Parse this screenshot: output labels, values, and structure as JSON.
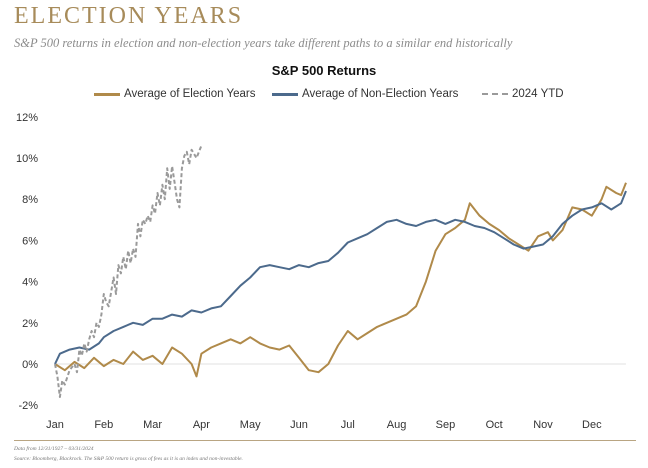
{
  "header": {
    "title": "ELECTION YEARS",
    "subtitle": "S&P 500 returns in election and non-election years take different paths to a similar end historically"
  },
  "footer": {
    "date_note": "Data from 12/31/1927 – 03/31/2024",
    "source_note": "Source: Bloomberg, Blackrock. The S&P 500 return is gross of fees as it is an index and non-investable."
  },
  "colors": {
    "accent": "#a78b5a",
    "election": "#b08a4a",
    "non_election": "#4c6a8c",
    "ytd_2024": "#9a9a9a"
  },
  "chart_data": {
    "type": "line",
    "title": "S&P 500 Returns",
    "xlabel": "",
    "ylabel": "",
    "x_tick_labels": [
      "Jan",
      "Feb",
      "Mar",
      "Apr",
      "May",
      "Jun",
      "Jul",
      "Aug",
      "Sep",
      "Oct",
      "Nov",
      "Dec"
    ],
    "y_ticks": [
      -2,
      0,
      2,
      4,
      6,
      8,
      10,
      12
    ],
    "y_tick_labels": [
      "-2%",
      "0%",
      "2%",
      "4%",
      "6%",
      "8%",
      "10%",
      "12%"
    ],
    "ylim": [
      -2,
      12
    ],
    "xlim": [
      0,
      11.7
    ],
    "grid": false,
    "legend_position": "top",
    "series": [
      {
        "name": "Average of Election Years",
        "style": "solid",
        "points": [
          [
            0,
            0.0
          ],
          [
            0.2,
            -0.3
          ],
          [
            0.4,
            0.1
          ],
          [
            0.6,
            -0.2
          ],
          [
            0.8,
            0.3
          ],
          [
            1.0,
            -0.1
          ],
          [
            1.2,
            0.2
          ],
          [
            1.4,
            0.0
          ],
          [
            1.6,
            0.6
          ],
          [
            1.8,
            0.2
          ],
          [
            2.0,
            0.4
          ],
          [
            2.2,
            0.0
          ],
          [
            2.4,
            0.8
          ],
          [
            2.6,
            0.5
          ],
          [
            2.8,
            0.0
          ],
          [
            2.9,
            -0.6
          ],
          [
            3.0,
            0.5
          ],
          [
            3.2,
            0.8
          ],
          [
            3.4,
            1.0
          ],
          [
            3.6,
            1.2
          ],
          [
            3.8,
            1.0
          ],
          [
            4.0,
            1.3
          ],
          [
            4.2,
            1.0
          ],
          [
            4.4,
            0.8
          ],
          [
            4.6,
            0.7
          ],
          [
            4.8,
            0.9
          ],
          [
            5.0,
            0.3
          ],
          [
            5.2,
            -0.3
          ],
          [
            5.4,
            -0.4
          ],
          [
            5.6,
            0.0
          ],
          [
            5.8,
            0.9
          ],
          [
            6.0,
            1.6
          ],
          [
            6.2,
            1.2
          ],
          [
            6.4,
            1.5
          ],
          [
            6.6,
            1.8
          ],
          [
            6.8,
            2.0
          ],
          [
            7.0,
            2.2
          ],
          [
            7.2,
            2.4
          ],
          [
            7.4,
            2.8
          ],
          [
            7.6,
            4.0
          ],
          [
            7.8,
            5.5
          ],
          [
            8.0,
            6.3
          ],
          [
            8.2,
            6.6
          ],
          [
            8.4,
            7.0
          ],
          [
            8.5,
            7.8
          ],
          [
            8.7,
            7.2
          ],
          [
            8.9,
            6.8
          ],
          [
            9.1,
            6.5
          ],
          [
            9.3,
            6.1
          ],
          [
            9.5,
            5.8
          ],
          [
            9.7,
            5.5
          ],
          [
            9.9,
            6.2
          ],
          [
            10.1,
            6.4
          ],
          [
            10.2,
            6.0
          ],
          [
            10.4,
            6.5
          ],
          [
            10.6,
            7.6
          ],
          [
            10.8,
            7.5
          ],
          [
            11.0,
            7.2
          ],
          [
            11.2,
            8.0
          ],
          [
            11.3,
            8.6
          ],
          [
            11.5,
            8.3
          ],
          [
            11.6,
            8.2
          ],
          [
            11.7,
            8.8
          ]
        ]
      },
      {
        "name": "Average of Non-Election Years",
        "style": "solid",
        "points": [
          [
            0,
            0.0
          ],
          [
            0.1,
            0.5
          ],
          [
            0.3,
            0.7
          ],
          [
            0.5,
            0.8
          ],
          [
            0.7,
            0.7
          ],
          [
            0.9,
            1.0
          ],
          [
            1.0,
            1.3
          ],
          [
            1.2,
            1.6
          ],
          [
            1.4,
            1.8
          ],
          [
            1.6,
            2.0
          ],
          [
            1.8,
            1.9
          ],
          [
            2.0,
            2.2
          ],
          [
            2.2,
            2.2
          ],
          [
            2.4,
            2.4
          ],
          [
            2.6,
            2.3
          ],
          [
            2.8,
            2.6
          ],
          [
            3.0,
            2.5
          ],
          [
            3.2,
            2.7
          ],
          [
            3.4,
            2.8
          ],
          [
            3.6,
            3.3
          ],
          [
            3.8,
            3.8
          ],
          [
            4.0,
            4.2
          ],
          [
            4.2,
            4.7
          ],
          [
            4.4,
            4.8
          ],
          [
            4.6,
            4.7
          ],
          [
            4.8,
            4.6
          ],
          [
            5.0,
            4.8
          ],
          [
            5.2,
            4.7
          ],
          [
            5.4,
            4.9
          ],
          [
            5.6,
            5.0
          ],
          [
            5.8,
            5.4
          ],
          [
            6.0,
            5.9
          ],
          [
            6.2,
            6.1
          ],
          [
            6.4,
            6.3
          ],
          [
            6.6,
            6.6
          ],
          [
            6.8,
            6.9
          ],
          [
            7.0,
            7.0
          ],
          [
            7.2,
            6.8
          ],
          [
            7.4,
            6.7
          ],
          [
            7.6,
            6.9
          ],
          [
            7.8,
            7.0
          ],
          [
            8.0,
            6.8
          ],
          [
            8.2,
            7.0
          ],
          [
            8.4,
            6.9
          ],
          [
            8.6,
            6.7
          ],
          [
            8.8,
            6.6
          ],
          [
            9.0,
            6.4
          ],
          [
            9.2,
            6.1
          ],
          [
            9.4,
            5.8
          ],
          [
            9.6,
            5.6
          ],
          [
            9.8,
            5.7
          ],
          [
            10.0,
            5.8
          ],
          [
            10.2,
            6.2
          ],
          [
            10.4,
            6.8
          ],
          [
            10.6,
            7.2
          ],
          [
            10.8,
            7.5
          ],
          [
            11.0,
            7.6
          ],
          [
            11.2,
            7.8
          ],
          [
            11.4,
            7.5
          ],
          [
            11.6,
            7.8
          ],
          [
            11.7,
            8.4
          ]
        ]
      },
      {
        "name": "2024 YTD",
        "style": "dashed",
        "points": [
          [
            0,
            0.0
          ],
          [
            0.05,
            -0.6
          ],
          [
            0.1,
            -1.6
          ],
          [
            0.15,
            -0.8
          ],
          [
            0.2,
            -1.0
          ],
          [
            0.3,
            -0.3
          ],
          [
            0.4,
            0.0
          ],
          [
            0.45,
            -0.4
          ],
          [
            0.5,
            0.7
          ],
          [
            0.55,
            0.4
          ],
          [
            0.6,
            1.0
          ],
          [
            0.65,
            0.6
          ],
          [
            0.7,
            1.2
          ],
          [
            0.75,
            1.6
          ],
          [
            0.8,
            1.3
          ],
          [
            0.85,
            2.0
          ],
          [
            0.9,
            1.8
          ],
          [
            0.95,
            2.4
          ],
          [
            1.0,
            3.4
          ],
          [
            1.05,
            3.0
          ],
          [
            1.1,
            2.8
          ],
          [
            1.2,
            4.2
          ],
          [
            1.25,
            3.4
          ],
          [
            1.3,
            4.8
          ],
          [
            1.35,
            4.4
          ],
          [
            1.4,
            5.2
          ],
          [
            1.45,
            4.6
          ],
          [
            1.5,
            5.5
          ],
          [
            1.55,
            4.9
          ],
          [
            1.6,
            5.6
          ],
          [
            1.65,
            5.2
          ],
          [
            1.7,
            6.8
          ],
          [
            1.75,
            6.2
          ],
          [
            1.8,
            7.0
          ],
          [
            1.85,
            6.8
          ],
          [
            1.9,
            7.2
          ],
          [
            1.95,
            6.9
          ],
          [
            2.0,
            7.7
          ],
          [
            2.05,
            7.3
          ],
          [
            2.1,
            8.3
          ],
          [
            2.15,
            7.7
          ],
          [
            2.2,
            8.7
          ],
          [
            2.25,
            8.0
          ],
          [
            2.3,
            9.5
          ],
          [
            2.35,
            8.5
          ],
          [
            2.4,
            9.6
          ],
          [
            2.45,
            8.8
          ],
          [
            2.5,
            8.0
          ],
          [
            2.55,
            7.6
          ],
          [
            2.6,
            9.5
          ],
          [
            2.65,
            10.1
          ],
          [
            2.7,
            10.3
          ],
          [
            2.75,
            9.7
          ],
          [
            2.8,
            10.4
          ],
          [
            2.9,
            10.0
          ],
          [
            3.0,
            10.6
          ]
        ]
      }
    ]
  }
}
